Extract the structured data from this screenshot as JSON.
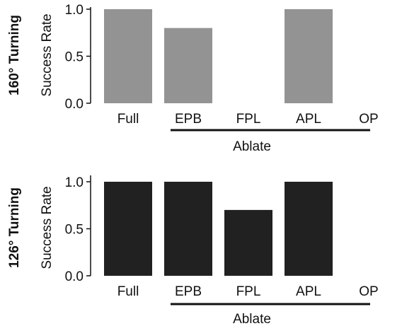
{
  "chart_data": [
    {
      "type": "bar",
      "row_label": "160° Turning",
      "ylabel": "Success Rate",
      "xlabel": "Ablate",
      "categories": [
        "Full",
        "EPB",
        "FPL",
        "APL",
        "OP"
      ],
      "values": [
        1.0,
        0.8,
        0.0,
        1.0,
        0.0
      ],
      "ylim": [
        0,
        1
      ],
      "yticks": [
        "0.0",
        "0.5",
        "1.0"
      ],
      "bar_color": "#939393",
      "grid": false
    },
    {
      "type": "bar",
      "row_label": "126° Turning",
      "ylabel": "Success Rate",
      "xlabel": "Ablate",
      "categories": [
        "Full",
        "EPB",
        "FPL",
        "APL",
        "OP"
      ],
      "values": [
        1.0,
        1.0,
        0.7,
        1.0,
        0.0
      ],
      "ylim": [
        0,
        1
      ],
      "yticks": [
        "0.0",
        "0.5",
        "1.0"
      ],
      "bar_color": "#212121",
      "grid": false
    }
  ]
}
